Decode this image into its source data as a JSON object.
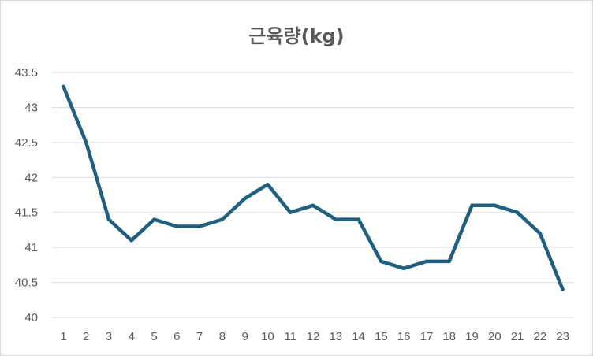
{
  "chart_data": {
    "type": "line",
    "title": "근육량(kg)",
    "xlabel": "",
    "ylabel": "",
    "x": [
      1,
      2,
      3,
      4,
      5,
      6,
      7,
      8,
      9,
      10,
      11,
      12,
      13,
      14,
      15,
      16,
      17,
      18,
      19,
      20,
      21,
      22,
      23
    ],
    "series": [
      {
        "values": [
          43.3,
          42.5,
          41.4,
          41.1,
          41.4,
          41.3,
          41.3,
          41.4,
          41.7,
          41.9,
          41.5,
          41.6,
          41.4,
          41.4,
          40.8,
          40.7,
          40.8,
          40.8,
          41.6,
          41.6,
          41.5,
          41.2,
          40.4
        ],
        "color": "#1f5f7f"
      }
    ],
    "ylim": [
      40,
      43.5
    ],
    "yticks": [
      "40",
      "40.5",
      "41",
      "41.5",
      "42",
      "42.5",
      "43",
      "43.5"
    ],
    "grid": true,
    "legend": "none",
    "colors": {
      "gridline": "#d9d9d9",
      "text": "#595959"
    }
  }
}
